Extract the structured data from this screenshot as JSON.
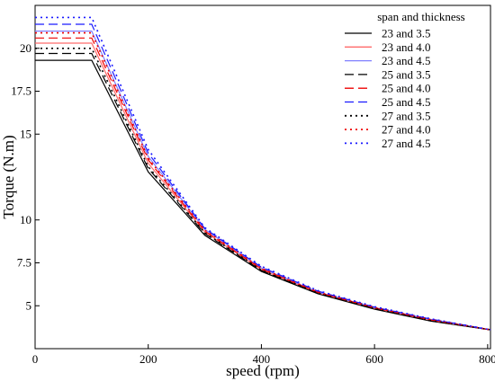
{
  "chart_data": {
    "type": "line",
    "title": "",
    "xlabel": "speed (rpm)",
    "ylabel": "Torque (N.m)",
    "xlim": [
      0,
      805
    ],
    "ylim": [
      2.5,
      22.5
    ],
    "x_ticks": [
      0,
      200,
      400,
      600,
      800
    ],
    "y_ticks": [
      5,
      7.5,
      10,
      15,
      17.5,
      20
    ],
    "grid": false,
    "legend_title": "span and thickness",
    "legend_position": "top-right",
    "series": [
      {
        "name": "23 and 3.5",
        "color": "#000000",
        "dash": "solid",
        "x": [
          0,
          100,
          200,
          300,
          400,
          500,
          600,
          700,
          805
        ],
        "y": [
          19.3,
          19.3,
          12.8,
          9.1,
          7.0,
          5.7,
          4.8,
          4.1,
          3.6
        ]
      },
      {
        "name": "23 and 4.0",
        "color": "#ff6a6a",
        "dash": "solid",
        "x": [
          0,
          100,
          200,
          300,
          400,
          500,
          600,
          700,
          805
        ],
        "y": [
          20.3,
          20.3,
          13.3,
          9.3,
          7.1,
          5.75,
          4.85,
          4.15,
          3.6
        ]
      },
      {
        "name": "23 and 4.5",
        "color": "#8080ff",
        "dash": "solid",
        "x": [
          0,
          100,
          200,
          300,
          400,
          500,
          600,
          700,
          805
        ],
        "y": [
          21.0,
          21.0,
          13.7,
          9.45,
          7.2,
          5.8,
          4.9,
          4.2,
          3.6
        ]
      },
      {
        "name": "25 and 3.5",
        "color": "#000000",
        "dash": "dash",
        "x": [
          0,
          100,
          200,
          300,
          400,
          500,
          600,
          700,
          805
        ],
        "y": [
          19.7,
          19.7,
          13.0,
          9.2,
          7.05,
          5.72,
          4.82,
          4.12,
          3.6
        ]
      },
      {
        "name": "25 and 4.0",
        "color": "#ee0000",
        "dash": "dash",
        "x": [
          0,
          100,
          200,
          300,
          400,
          500,
          600,
          700,
          805
        ],
        "y": [
          20.6,
          20.6,
          13.5,
          9.35,
          7.15,
          5.78,
          4.88,
          4.17,
          3.6
        ]
      },
      {
        "name": "25 and 4.5",
        "color": "#1a1aff",
        "dash": "dash",
        "x": [
          0,
          100,
          200,
          300,
          400,
          500,
          600,
          700,
          805
        ],
        "y": [
          21.4,
          21.4,
          13.9,
          9.5,
          7.25,
          5.85,
          4.92,
          4.22,
          3.6
        ]
      },
      {
        "name": "27 and 3.5",
        "color": "#000000",
        "dash": "dot",
        "x": [
          0,
          100,
          200,
          300,
          400,
          500,
          600,
          700,
          805
        ],
        "y": [
          20.0,
          20.0,
          13.1,
          9.25,
          7.08,
          5.74,
          4.84,
          4.14,
          3.6
        ]
      },
      {
        "name": "27 and 4.0",
        "color": "#ee0000",
        "dash": "dot",
        "x": [
          0,
          100,
          200,
          300,
          400,
          500,
          600,
          700,
          805
        ],
        "y": [
          20.9,
          20.9,
          13.6,
          9.4,
          7.18,
          5.8,
          4.9,
          4.19,
          3.6
        ]
      },
      {
        "name": "27 and 4.5",
        "color": "#1a1aff",
        "dash": "dot",
        "x": [
          0,
          100,
          200,
          300,
          400,
          500,
          600,
          700,
          805
        ],
        "y": [
          21.8,
          21.8,
          14.1,
          9.55,
          7.3,
          5.88,
          4.95,
          4.24,
          3.6
        ]
      }
    ]
  }
}
